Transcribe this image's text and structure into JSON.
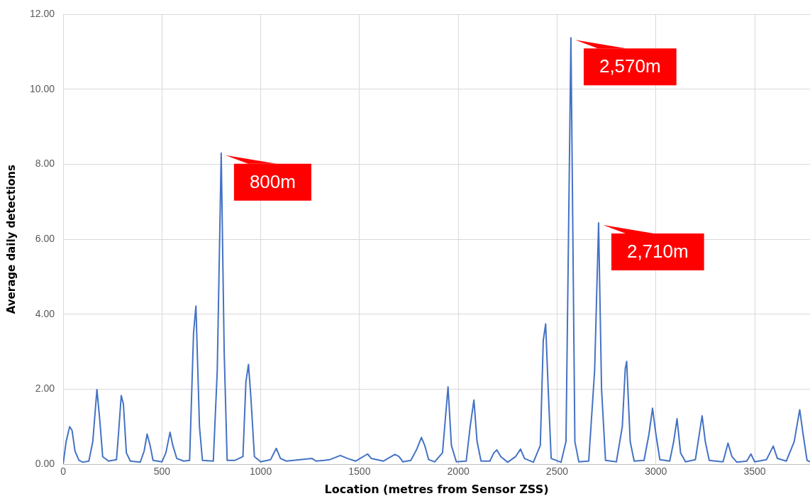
{
  "chart_data": {
    "type": "line",
    "xlabel": "Location (metres from Sensor ZSS)",
    "ylabel": "Average daily detections",
    "xlim": [
      0,
      3780
    ],
    "xticks": [
      0,
      500,
      1000,
      1500,
      2000,
      2500,
      3000,
      3500
    ],
    "ylim": [
      0,
      12
    ],
    "yticks": [
      {
        "value": 0,
        "label": "0.00"
      },
      {
        "value": 2,
        "label": "2.00"
      },
      {
        "value": 4,
        "label": "4.00"
      },
      {
        "value": 6,
        "label": "6.00"
      },
      {
        "value": 8,
        "label": "8.00"
      },
      {
        "value": 10,
        "label": "10.00"
      },
      {
        "value": 12,
        "label": "12.00"
      }
    ],
    "grid": true,
    "legend": false,
    "marker": "none",
    "line_style": "solid",
    "x": [
      0,
      15,
      33,
      45,
      60,
      80,
      100,
      130,
      150,
      171,
      185,
      200,
      230,
      270,
      280,
      294,
      305,
      320,
      340,
      390,
      410,
      425,
      440,
      455,
      500,
      520,
      541,
      555,
      575,
      610,
      640,
      660,
      672,
      690,
      705,
      760,
      780,
      800,
      815,
      830,
      870,
      910,
      925,
      938,
      950,
      968,
      1000,
      1050,
      1079,
      1100,
      1130,
      1200,
      1260,
      1280,
      1320,
      1350,
      1403,
      1440,
      1480,
      1541,
      1560,
      1620,
      1679,
      1700,
      1720,
      1760,
      1790,
      1813,
      1830,
      1850,
      1880,
      1920,
      1948,
      1965,
      1990,
      2040,
      2060,
      2079,
      2095,
      2115,
      2160,
      2180,
      2195,
      2215,
      2250,
      2290,
      2315,
      2335,
      2380,
      2415,
      2430,
      2442,
      2455,
      2470,
      2520,
      2545,
      2570,
      2590,
      2610,
      2660,
      2690,
      2710,
      2725,
      2745,
      2800,
      2830,
      2845,
      2852,
      2870,
      2890,
      2940,
      2965,
      2983,
      3000,
      3020,
      3070,
      3090,
      3107,
      3125,
      3150,
      3200,
      3234,
      3250,
      3270,
      3340,
      3365,
      3385,
      3410,
      3460,
      3481,
      3500,
      3560,
      3594,
      3615,
      3660,
      3700,
      3728,
      3745,
      3765,
      3780
    ],
    "series": [
      {
        "color": "#4472c4",
        "values": [
          0.0,
          0.6,
          1.0,
          0.9,
          0.35,
          0.1,
          0.05,
          0.08,
          0.6,
          1.99,
          1.2,
          0.2,
          0.08,
          0.12,
          0.8,
          1.83,
          1.6,
          0.3,
          0.08,
          0.05,
          0.35,
          0.8,
          0.5,
          0.1,
          0.06,
          0.3,
          0.85,
          0.5,
          0.15,
          0.08,
          0.1,
          3.5,
          4.22,
          1.0,
          0.1,
          0.08,
          2.5,
          8.3,
          3.0,
          0.1,
          0.1,
          0.2,
          2.2,
          2.66,
          1.8,
          0.2,
          0.06,
          0.12,
          0.42,
          0.15,
          0.08,
          0.12,
          0.15,
          0.08,
          0.1,
          0.12,
          0.23,
          0.15,
          0.08,
          0.27,
          0.15,
          0.08,
          0.26,
          0.2,
          0.06,
          0.1,
          0.4,
          0.71,
          0.5,
          0.12,
          0.06,
          0.3,
          2.06,
          0.5,
          0.06,
          0.08,
          1.0,
          1.71,
          0.6,
          0.08,
          0.08,
          0.3,
          0.38,
          0.2,
          0.05,
          0.2,
          0.4,
          0.15,
          0.05,
          0.5,
          3.3,
          3.74,
          2.0,
          0.15,
          0.05,
          0.6,
          11.38,
          0.6,
          0.06,
          0.08,
          2.5,
          6.44,
          2.0,
          0.1,
          0.06,
          1.0,
          2.55,
          2.74,
          0.6,
          0.08,
          0.1,
          0.8,
          1.49,
          0.8,
          0.12,
          0.08,
          0.6,
          1.21,
          0.3,
          0.06,
          0.12,
          1.29,
          0.6,
          0.1,
          0.06,
          0.56,
          0.2,
          0.05,
          0.08,
          0.27,
          0.06,
          0.12,
          0.48,
          0.15,
          0.08,
          0.6,
          1.45,
          0.8,
          0.1,
          0.06
        ]
      }
    ],
    "annotations": [
      {
        "text": "800m",
        "x": 800,
        "y": 8.3
      },
      {
        "text": "2,570m",
        "x": 2570,
        "y": 11.38
      },
      {
        "text": "2,710m",
        "x": 2710,
        "y": 6.44
      }
    ]
  }
}
